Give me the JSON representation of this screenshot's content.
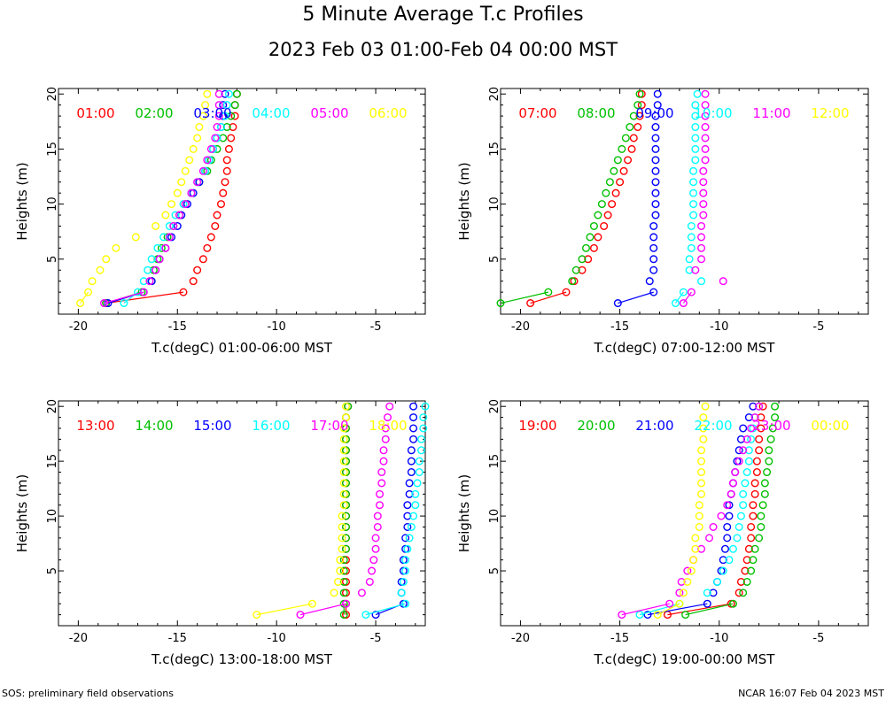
{
  "title": "5 Minute Average T.c Profiles",
  "subtitle": "2023 Feb 03 01:00-Feb 04 00:00 MST",
  "footer_left": "SOS: preliminary field observations",
  "footer_right": "NCAR 16:07 Feb 04 2023 MST",
  "series_colors": [
    "#ff0000",
    "#00c000",
    "#0000ff",
    "#00ffff",
    "#ff00ff",
    "#ffff00"
  ],
  "chart_data": [
    {
      "type": "scatter",
      "xlabel": "T.c(degC) 01:00-06:00 MST",
      "ylabel": "Heights (m)",
      "xlim": [
        -21,
        -2.5
      ],
      "ylim": [
        0,
        20.5
      ],
      "xticks": [
        -20,
        -15,
        -10,
        -5
      ],
      "yticks": [
        5,
        10,
        15,
        20
      ],
      "heights": [
        1,
        2,
        3,
        4,
        5,
        6,
        7,
        8,
        9,
        10,
        11,
        12,
        13,
        14,
        15,
        16,
        17,
        18,
        19,
        20
      ],
      "series": [
        {
          "name": "01:00",
          "values": [
            -18.6,
            -14.7,
            -14.2,
            -14.0,
            -13.7,
            -13.5,
            -13.3,
            -13.1,
            -13.0,
            -12.8,
            -12.7,
            -12.6,
            -12.5,
            -12.5,
            -12.4,
            -12.3,
            -12.2,
            -12.1,
            -12.1,
            -12.0
          ]
        },
        {
          "name": "02:00",
          "values": [
            -18.6,
            -16.8,
            -16.3,
            -16.2,
            -16.0,
            -15.8,
            -15.5,
            -15.2,
            -14.9,
            -14.6,
            -14.3,
            -13.9,
            -13.5,
            -13.3,
            -13.0,
            -12.7,
            -12.5,
            -12.3,
            -12.1,
            -12.0
          ]
        },
        {
          "name": "03:00",
          "values": [
            -18.5,
            -16.7,
            -16.3,
            -16.1,
            -15.9,
            -15.6,
            -15.3,
            -15.0,
            -14.8,
            -14.5,
            -14.2,
            -13.9,
            -13.6,
            -13.4,
            -13.2,
            -13.0,
            -12.8,
            -12.7,
            -12.7,
            -12.6
          ]
        },
        {
          "name": "04:00",
          "values": [
            -17.7,
            -17.0,
            -16.7,
            -16.5,
            -16.3,
            -16.0,
            -15.7,
            -15.4,
            -15.1,
            -14.7,
            -14.3,
            -14.0,
            -13.6,
            -13.4,
            -13.2,
            -13.0,
            -12.8,
            -12.6,
            -12.5,
            -12.4
          ]
        },
        {
          "name": "05:00",
          "values": [
            -18.7,
            -16.7,
            -16.4,
            -16.1,
            -15.9,
            -15.6,
            -15.4,
            -15.2,
            -14.9,
            -14.6,
            -14.3,
            -14.0,
            -13.7,
            -13.5,
            -13.3,
            -13.1,
            -13.0,
            -12.9,
            -12.9,
            -12.9
          ]
        },
        {
          "name": "06:00",
          "values": [
            -19.9,
            -19.5,
            -19.3,
            -18.9,
            -18.6,
            -18.1,
            -17.1,
            -16.1,
            -15.6,
            -15.3,
            -15.0,
            -14.8,
            -14.6,
            -14.4,
            -14.2,
            -14.0,
            -13.9,
            -13.7,
            -13.6,
            -13.5
          ]
        }
      ]
    },
    {
      "type": "scatter",
      "xlabel": "T.c(degC) 07:00-12:00 MST",
      "ylabel": "Heights (m)",
      "xlim": [
        -21,
        -2.5
      ],
      "ylim": [
        0,
        20.5
      ],
      "xticks": [
        -20,
        -15,
        -10,
        -5
      ],
      "yticks": [
        5,
        10,
        15,
        20
      ],
      "heights": [
        1,
        2,
        3,
        4,
        5,
        6,
        7,
        8,
        9,
        10,
        11,
        12,
        13,
        14,
        15,
        16,
        17,
        18,
        19,
        20
      ],
      "series": [
        {
          "name": "07:00",
          "values": [
            -19.5,
            -17.7,
            -17.3,
            -16.9,
            -16.6,
            -16.3,
            -16.1,
            -15.8,
            -15.6,
            -15.4,
            -15.2,
            -15.0,
            -14.8,
            -14.6,
            -14.4,
            -14.3,
            -14.1,
            -14.0,
            -13.9,
            -13.9
          ]
        },
        {
          "name": "08:00",
          "values": [
            -21.0,
            -18.6,
            -17.4,
            -17.2,
            -16.9,
            -16.7,
            -16.5,
            -16.3,
            -16.1,
            -15.9,
            -15.7,
            -15.5,
            -15.3,
            -15.1,
            -14.9,
            -14.7,
            -14.5,
            -14.3,
            -14.1,
            -14.0
          ]
        },
        {
          "name": "09:00",
          "values": [
            -15.1,
            -13.3,
            -13.5,
            -13.3,
            -13.3,
            -13.3,
            -13.3,
            -13.3,
            -13.2,
            -13.2,
            -13.2,
            -13.2,
            -13.2,
            -13.2,
            -13.2,
            -13.2,
            -13.2,
            -13.2,
            -13.1,
            -13.1
          ]
        },
        {
          "name": "10:00",
          "values": [
            -12.2,
            -11.8,
            -10.9,
            -11.5,
            -11.5,
            -11.4,
            -11.4,
            -11.4,
            -11.3,
            -11.3,
            -11.3,
            -11.3,
            -11.3,
            -11.2,
            -11.2,
            -11.2,
            -11.2,
            -11.2,
            -11.2,
            -11.1
          ]
        },
        {
          "name": "11:00",
          "values": [
            -11.8,
            -11.4,
            -9.8,
            -11.2,
            -10.9,
            -10.9,
            -10.9,
            -10.9,
            -10.8,
            -10.8,
            -10.8,
            -10.8,
            -10.8,
            -10.7,
            -10.7,
            -10.7,
            -10.7,
            -10.7,
            -10.7,
            -10.7
          ]
        },
        {
          "name": "12:00",
          "values": []
        }
      ]
    },
    {
      "type": "scatter",
      "xlabel": "T.c(degC) 13:00-18:00 MST",
      "ylabel": "Heights (m)",
      "xlim": [
        -21,
        -2.5
      ],
      "ylim": [
        0,
        20.5
      ],
      "xticks": [
        -20,
        -15,
        -10,
        -5
      ],
      "yticks": [
        5,
        10,
        15,
        20
      ],
      "heights": [
        1,
        2,
        3,
        4,
        5,
        6,
        7,
        8,
        9,
        10,
        11,
        12,
        13,
        14,
        15,
        16,
        17,
        18,
        19,
        20
      ],
      "series": [
        {
          "name": "13:00",
          "values": [
            -6.5,
            -6.5,
            -6.5,
            -6.5,
            -6.5,
            -6.5,
            -6.5,
            -6.5,
            -6.5,
            -6.5,
            -6.5,
            -6.5,
            -6.5,
            -6.5,
            -6.5,
            -6.5,
            -6.5,
            -6.5,
            -6.5,
            -6.4
          ]
        },
        {
          "name": "14:00",
          "values": [
            -6.6,
            -6.6,
            -6.6,
            -6.6,
            -6.6,
            -6.6,
            -6.5,
            -6.5,
            -6.5,
            -6.5,
            -6.5,
            -6.5,
            -6.5,
            -6.5,
            -6.5,
            -6.5,
            -6.5,
            -6.5,
            -6.5,
            -6.4
          ]
        },
        {
          "name": "15:00",
          "values": [
            -5.0,
            -3.6,
            -3.7,
            -3.7,
            -3.6,
            -3.6,
            -3.5,
            -3.5,
            -3.4,
            -3.4,
            -3.4,
            -3.3,
            -3.3,
            -3.2,
            -3.2,
            -3.2,
            -3.1,
            -3.1,
            -3.1,
            -3.1
          ]
        },
        {
          "name": "16:00",
          "values": [
            -5.5,
            -3.5,
            -3.7,
            -3.6,
            -3.5,
            -3.5,
            -3.4,
            -3.3,
            -3.2,
            -3.1,
            -3.0,
            -3.0,
            -2.9,
            -2.8,
            -2.8,
            -2.7,
            -2.7,
            -2.6,
            -2.6,
            -2.5
          ]
        },
        {
          "name": "17:00",
          "values": [
            -8.8,
            -6.5,
            -5.7,
            -5.3,
            -5.2,
            -5.1,
            -5.0,
            -5.0,
            -4.9,
            -4.9,
            -4.8,
            -4.8,
            -4.7,
            -4.7,
            -4.6,
            -4.6,
            -4.5,
            -4.5,
            -4.4,
            -4.3
          ]
        },
        {
          "name": "18:00",
          "values": [
            -11.0,
            -8.2,
            -7.1,
            -6.9,
            -6.8,
            -6.8,
            -6.7,
            -6.7,
            -6.7,
            -6.7,
            -6.6,
            -6.6,
            -6.6,
            -6.6,
            -6.6,
            -6.6,
            -6.6,
            -6.6,
            -6.5,
            -6.5
          ]
        }
      ]
    },
    {
      "type": "scatter",
      "xlabel": "T.c(degC) 19:00-00:00 MST",
      "ylabel": "Heights (m)",
      "xlim": [
        -21,
        -2.5
      ],
      "ylim": [
        0,
        20.5
      ],
      "xticks": [
        -20,
        -15,
        -10,
        -5
      ],
      "yticks": [
        5,
        10,
        15,
        20
      ],
      "heights": [
        1,
        2,
        3,
        4,
        5,
        6,
        7,
        8,
        9,
        10,
        11,
        12,
        13,
        14,
        15,
        16,
        17,
        18,
        19,
        20
      ],
      "series": [
        {
          "name": "19:00",
          "values": [
            -12.6,
            -9.4,
            -9.0,
            -8.9,
            -8.7,
            -8.6,
            -8.5,
            -8.4,
            -8.4,
            -8.3,
            -8.3,
            -8.2,
            -8.2,
            -8.1,
            -8.1,
            -8.0,
            -8.0,
            -7.9,
            -7.9,
            -7.8
          ]
        },
        {
          "name": "20:00",
          "values": [
            -11.7,
            -9.3,
            -8.8,
            -8.6,
            -8.4,
            -8.3,
            -8.2,
            -8.0,
            -7.9,
            -7.9,
            -7.8,
            -7.7,
            -7.7,
            -7.6,
            -7.5,
            -7.5,
            -7.4,
            -7.3,
            -7.2,
            -7.2
          ]
        },
        {
          "name": "21:00",
          "values": [
            -13.6,
            -10.6,
            -10.3,
            -10.1,
            -9.9,
            -9.8,
            -9.7,
            -9.6,
            -9.6,
            -9.5,
            -9.5,
            -9.4,
            -9.3,
            -9.2,
            -9.1,
            -9.0,
            -8.9,
            -8.8,
            -8.5,
            -8.3
          ]
        },
        {
          "name": "22:00",
          "values": [
            -14.0,
            -12.0,
            -10.6,
            -10.1,
            -9.8,
            -9.5,
            -9.3,
            -9.1,
            -9.0,
            -8.9,
            -8.8,
            -8.8,
            -8.7,
            -8.6,
            -8.5,
            -8.5,
            -8.4,
            -8.3,
            -8.2,
            -8.0
          ]
        },
        {
          "name": "23:00",
          "values": [
            -14.9,
            -12.5,
            -12.0,
            -11.9,
            -11.6,
            -11.3,
            -10.9,
            -10.5,
            -10.3,
            -9.9,
            -9.6,
            -9.4,
            -9.3,
            -9.2,
            -9.0,
            -8.8,
            -8.6,
            -8.4,
            -8.2,
            -8.0
          ]
        },
        {
          "name": "00:00",
          "values": [
            -13.1,
            -12.0,
            -11.8,
            -11.6,
            -11.4,
            -11.3,
            -11.2,
            -11.2,
            -11.0,
            -11.0,
            -11.0,
            -10.9,
            -10.9,
            -10.9,
            -10.9,
            -10.9,
            -10.8,
            -10.8,
            -10.8,
            -10.7
          ]
        }
      ]
    }
  ]
}
